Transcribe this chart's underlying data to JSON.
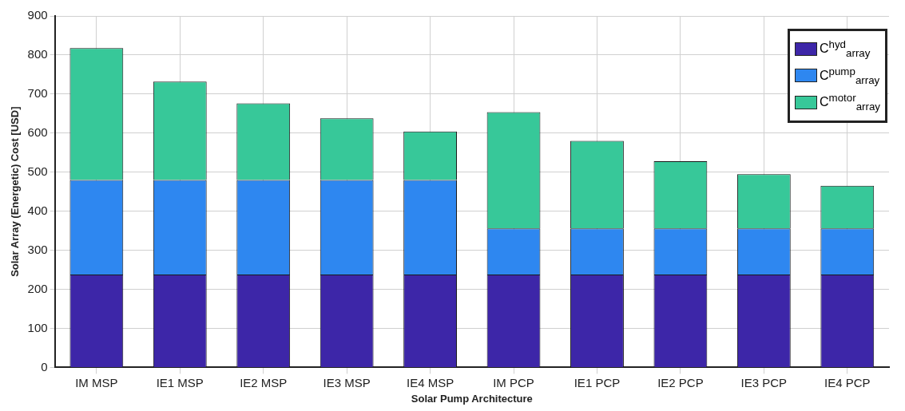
{
  "chart_data": {
    "type": "bar",
    "stacked": true,
    "xlabel": "Solar Pump Architecture",
    "ylabel": "Solar Array (Energetic) Cost [USD]",
    "categories": [
      "IM MSP",
      "IE1 MSP",
      "IE2 MSP",
      "IE3 MSP",
      "IE4 MSP",
      "IM PCP",
      "IE1 PCP",
      "IE2 PCP",
      "IE3 PCP",
      "IE4 PCP"
    ],
    "series": [
      {
        "name": "C$^{hyd}$$_{array}$",
        "color": "#3d26a8",
        "values": [
          238,
          238,
          238,
          238,
          238,
          238,
          238,
          238,
          238,
          238
        ]
      },
      {
        "name": "C$^{pump}$$_{array}$",
        "color": "#2e87f0",
        "values": [
          242,
          242,
          242,
          242,
          242,
          118,
          118,
          118,
          118,
          118
        ]
      },
      {
        "name": "C$^{motor}$$_{array}$",
        "color": "#37c899",
        "values": [
          338,
          252,
          196,
          158,
          124,
          298,
          224,
          172,
          139,
          109
        ]
      }
    ],
    "ylim": [
      0,
      900
    ],
    "yticks": [
      0,
      100,
      200,
      300,
      400,
      500,
      600,
      700,
      800,
      900
    ],
    "grid": true,
    "legend": "top right"
  }
}
